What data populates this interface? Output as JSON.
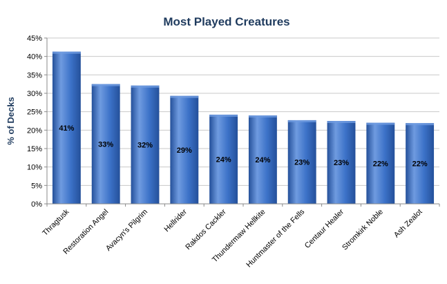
{
  "chart_data": {
    "type": "bar",
    "title": "Most Played Creatures",
    "xlabel": "",
    "ylabel": "% of Decks",
    "ylim": [
      0,
      45
    ],
    "yticks": [
      "0%",
      "5%",
      "10%",
      "15%",
      "20%",
      "25%",
      "30%",
      "35%",
      "40%",
      "45%"
    ],
    "ytick_values": [
      0,
      5,
      10,
      15,
      20,
      25,
      30,
      35,
      40,
      45
    ],
    "grid": true,
    "categories": [
      "Thragtusk",
      "Restoration Angel",
      "Avacyn's Pilgrim",
      "Hellrider",
      "Rakdos Cackler",
      "Thundermaw Hellkite",
      "Huntmaster of the Fells",
      "Centaur Healer",
      "Stromkirk Noble",
      "Ash Zealot"
    ],
    "values": [
      41.3,
      32.5,
      32.1,
      29.3,
      24.2,
      24.0,
      22.7,
      22.5,
      22.0,
      21.9
    ],
    "data_labels": [
      "41%",
      "33%",
      "32%",
      "29%",
      "24%",
      "24%",
      "23%",
      "23%",
      "22%",
      "22%"
    ],
    "colors": {
      "bar_light": "#6f9be0",
      "bar": "#3c72c8",
      "bar_dark": "#24509a",
      "title": "#1f3b5e"
    }
  }
}
